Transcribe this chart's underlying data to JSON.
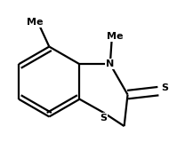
{
  "bg_color": "#ffffff",
  "line_color": "#000000",
  "line_width": 1.6,
  "text_color": "#000000",
  "label_N": "N",
  "label_S_thione": "S",
  "label_S_ring": "S",
  "label_Me_N": "Me",
  "label_Me_C": "Me",
  "font_size": 8,
  "font_weight": "bold",
  "figsize": [
    1.99,
    1.69
  ],
  "dpi": 100
}
